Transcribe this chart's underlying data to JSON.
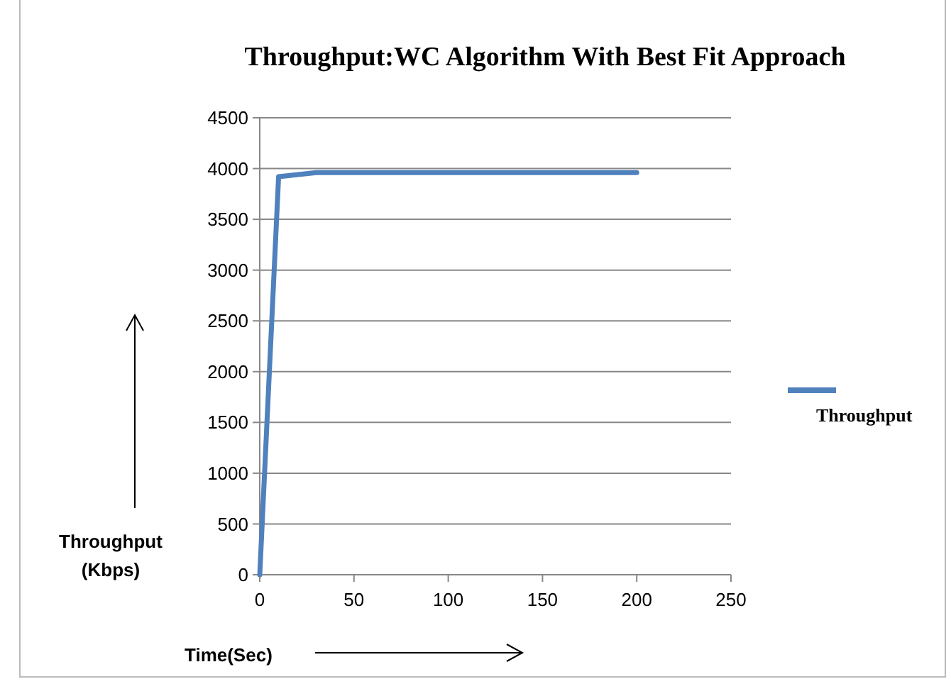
{
  "chart_data": {
    "type": "line",
    "title": "Throughput:WC Algorithm With Best Fit Approach",
    "xlabel": "Time(Sec)",
    "ylabel": "Throughput\n(Kbps)",
    "x": [
      0,
      10,
      30,
      200
    ],
    "series": [
      {
        "name": "Throughput",
        "color": "#4f81bd",
        "values": [
          0,
          3920,
          3960,
          3960
        ]
      }
    ],
    "xlim": [
      0,
      250
    ],
    "xticks": [
      0,
      50,
      100,
      150,
      200,
      250
    ],
    "ylim": [
      0,
      4500
    ],
    "yticks": [
      0,
      500,
      1000,
      1500,
      2000,
      2500,
      3000,
      3500,
      4000,
      4500
    ],
    "grid": "y",
    "legend": "right",
    "marker": "none",
    "line_style": "solid"
  }
}
